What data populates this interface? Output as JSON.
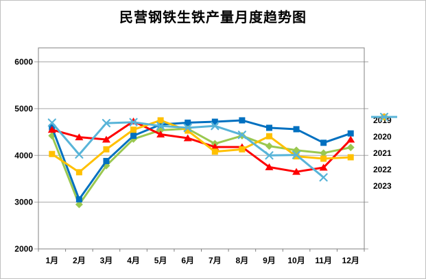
{
  "page": {
    "title": "民营钢铁生铁产量月度趋势图"
  },
  "chart_data": {
    "type": "line",
    "title": "民营钢铁生铁产量月度趋势图",
    "categories": [
      "1月",
      "2月",
      "3月",
      "4月",
      "5月",
      "6月",
      "7月",
      "8月",
      "9月",
      "10月",
      "11月",
      "12月"
    ],
    "series": [
      {
        "name": "2019",
        "color": "#9AC850",
        "marker": "diamond",
        "values": [
          4420,
          2950,
          3780,
          4350,
          4540,
          4570,
          4250,
          4420,
          4200,
          4110,
          4050,
          4170
        ]
      },
      {
        "name": "2020",
        "color": "#0070C0",
        "marker": "square",
        "values": [
          4600,
          3060,
          3880,
          4420,
          4660,
          4700,
          4720,
          4750,
          4590,
          4560,
          4270,
          4470
        ]
      },
      {
        "name": "2021",
        "color": "#FE0000",
        "marker": "triangle",
        "values": [
          4550,
          4390,
          4340,
          4730,
          4450,
          4370,
          4180,
          4180,
          3750,
          3650,
          3740,
          4340
        ]
      },
      {
        "name": "2022",
        "color": "#FFC000",
        "marker": "square",
        "values": [
          4030,
          3640,
          4130,
          4550,
          4750,
          4530,
          4080,
          4130,
          4410,
          3980,
          3930,
          3960
        ]
      },
      {
        "name": "2023",
        "color": "#58B4D8",
        "marker": "x",
        "values": [
          4700,
          4020,
          4690,
          4710,
          4630,
          4590,
          4630,
          4440,
          4000,
          4010,
          3530,
          null
        ]
      }
    ],
    "xlabel": "",
    "ylabel": "",
    "ylim": [
      2000,
      6300
    ],
    "yticks": [
      2000,
      3000,
      4000,
      5000,
      6000
    ],
    "grid": true,
    "legend_position": "right",
    "colors": {
      "gridline": "#A6A6A6",
      "frame": "#808080",
      "tick_label": "#000000"
    }
  }
}
